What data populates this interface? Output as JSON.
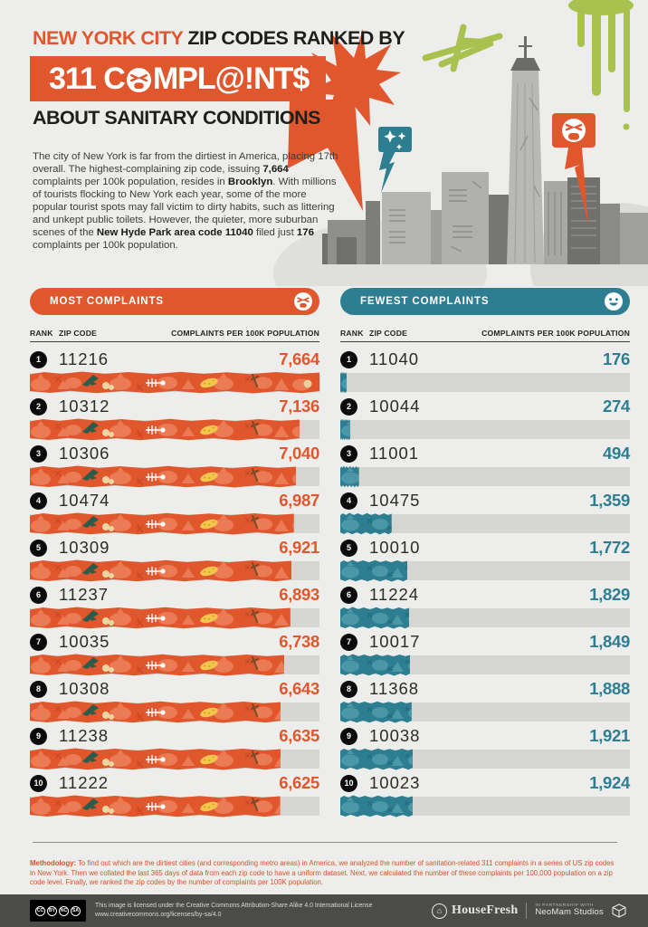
{
  "colors": {
    "orange": "#E1572D",
    "teal": "#2E7E92",
    "background": "#EDEDEB",
    "bar_track": "#D5D5D1",
    "green_graffiti": "#A9C24F",
    "footer_bg": "#4B4B47",
    "rank_badge": "#0B0B0B",
    "methodology_text": "#D2552C"
  },
  "header": {
    "kicker_highlight": "NEW YORK CITY",
    "kicker_rest": " ZIP CODES RANKED BY",
    "banner_pre": "311 C",
    "banner_post": "MPL@!NT$",
    "subtitle": "ABOUT SANITARY CONDITIONS",
    "intro_segments": [
      {
        "t": "The city of New York is far from the dirtiest in America, placing 17th overall. The highest-complaining zip code, issuing ",
        "b": false
      },
      {
        "t": "7,664",
        "b": true
      },
      {
        "t": " complaints per 100k population, resides in ",
        "b": false
      },
      {
        "t": "Brooklyn",
        "b": true
      },
      {
        "t": ". With millions of tourists flocking to New York each year, some of the more popular tourist spots may fall victim to dirty habits, such as littering and unkept public toilets. However, the quieter, more suburban scenes of the ",
        "b": false
      },
      {
        "t": "New Hyde Park area code 11040",
        "b": true
      },
      {
        "t": " filed just ",
        "b": false
      },
      {
        "t": "176",
        "b": true
      },
      {
        "t": " complaints per 100k population.",
        "b": false
      }
    ],
    "icons": {
      "banner_o": "angry-face",
      "speech_bubble_left": "sparkles",
      "speech_bubble_right": "angry-face"
    }
  },
  "table_headers": {
    "rank": "RANK",
    "zip": "ZIP CODE",
    "value": "COMPLAINTS PER 100K POPULATION"
  },
  "chart_data": [
    {
      "type": "bar",
      "orientation": "horizontal",
      "title": "MOST COMPLAINTS",
      "icon": "angry-face",
      "accent": "#E1572D",
      "xlabel": "COMPLAINTS PER 100K POPULATION",
      "scale_max": 7664,
      "categories": [
        "11216",
        "10312",
        "10306",
        "10474",
        "10309",
        "11237",
        "10035",
        "10308",
        "11238",
        "11222"
      ],
      "values": [
        7664,
        7136,
        7040,
        6987,
        6921,
        6893,
        6738,
        6643,
        6635,
        6625
      ],
      "rows": [
        {
          "rank": "1",
          "zip": "11216",
          "value": 7664,
          "display": "7,664"
        },
        {
          "rank": "2",
          "zip": "10312",
          "value": 7136,
          "display": "7,136"
        },
        {
          "rank": "3",
          "zip": "10306",
          "value": 7040,
          "display": "7,040"
        },
        {
          "rank": "4",
          "zip": "10474",
          "value": 6987,
          "display": "6,987"
        },
        {
          "rank": "5",
          "zip": "10309",
          "value": 6921,
          "display": "6,921"
        },
        {
          "rank": "6",
          "zip": "11237",
          "value": 6893,
          "display": "6,893"
        },
        {
          "rank": "7",
          "zip": "10035",
          "value": 6738,
          "display": "6,738"
        },
        {
          "rank": "8",
          "zip": "10308",
          "value": 6643,
          "display": "6,643"
        },
        {
          "rank": "9",
          "zip": "11238",
          "value": 6635,
          "display": "6,635"
        },
        {
          "rank": "10",
          "zip": "11222",
          "value": 6625,
          "display": "6,625"
        }
      ]
    },
    {
      "type": "bar",
      "orientation": "horizontal",
      "title": "FEWEST COMPLAINTS",
      "icon": "happy-face",
      "accent": "#2E7E92",
      "xlabel": "COMPLAINTS PER 100K POPULATION",
      "scale_max": 7664,
      "categories": [
        "11040",
        "10044",
        "11001",
        "10475",
        "10010",
        "11224",
        "10017",
        "11368",
        "10038",
        "10023"
      ],
      "values": [
        176,
        274,
        494,
        1359,
        1772,
        1829,
        1849,
        1888,
        1921,
        1924
      ],
      "rows": [
        {
          "rank": "1",
          "zip": "11040",
          "value": 176,
          "display": "176"
        },
        {
          "rank": "2",
          "zip": "10044",
          "value": 274,
          "display": "274"
        },
        {
          "rank": "3",
          "zip": "11001",
          "value": 494,
          "display": "494"
        },
        {
          "rank": "4",
          "zip": "10475",
          "value": 1359,
          "display": "1,359"
        },
        {
          "rank": "5",
          "zip": "10010",
          "value": 1772,
          "display": "1,772"
        },
        {
          "rank": "6",
          "zip": "11224",
          "value": 1829,
          "display": "1,829"
        },
        {
          "rank": "7",
          "zip": "10017",
          "value": 1849,
          "display": "1,849"
        },
        {
          "rank": "8",
          "zip": "11368",
          "value": 1888,
          "display": "1,888"
        },
        {
          "rank": "9",
          "zip": "10038",
          "value": 1921,
          "display": "1,921"
        },
        {
          "rank": "10",
          "zip": "10023",
          "value": 1924,
          "display": "1,924"
        }
      ]
    }
  ],
  "methodology": {
    "label": "Methodology:",
    "text": " To find out which are the dirtiest cities (and corresponding metro areas) in America, we analyzed the number of sanitation-related 311 complaints in a series of US zip codes in New York. Then we collated the last 365 days of data from each zip code to have a uniform dataset. Next, we calculated the number of these complaints per 100,000 population on a zip code level. Finally, we ranked the zip codes by the number of complaints per 100K population."
  },
  "footer": {
    "license_line1": "This image is licensed under the Creative Commons Attribution-Share Alike 4.0 International License",
    "license_line2": "www.creativecommons.org/licenses/by-sa/4.0",
    "cc_icons": [
      "CC",
      "BY",
      "NC",
      "SA"
    ],
    "housefresh": "HouseFresh",
    "partnership_label": "IN PARTNERSHIP WITH",
    "neomam": "NeoMam Studios",
    "icons": {
      "housefresh_logo": "house-in-circle",
      "neomam_logo": "cube-dice"
    }
  }
}
